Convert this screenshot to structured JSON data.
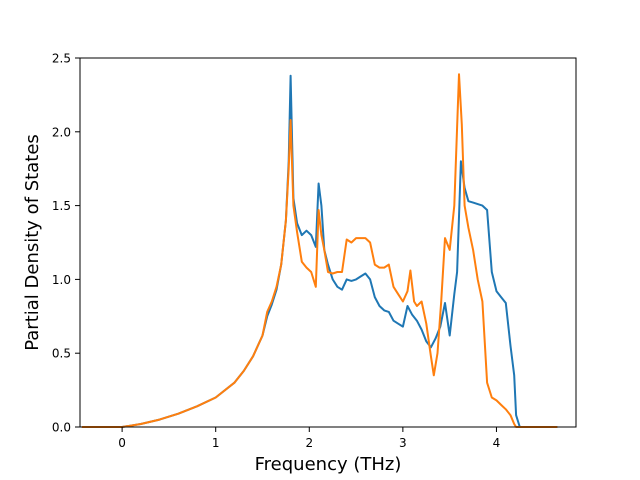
{
  "chart_data": {
    "type": "line",
    "title": "",
    "xlabel": "Frequency (THz)",
    "ylabel": "Partial Density of States",
    "xlim": [
      -0.45,
      4.85
    ],
    "ylim": [
      0,
      2.5
    ],
    "xticks": [
      0,
      1,
      2,
      3,
      4
    ],
    "yticks": [
      0.0,
      0.5,
      1.0,
      1.5,
      2.0,
      2.5
    ],
    "xtick_labels": [
      "0",
      "1",
      "2",
      "3",
      "4"
    ],
    "ytick_labels": [
      "0.0",
      "0.5",
      "1.0",
      "1.5",
      "2.0",
      "2.5"
    ],
    "grid": false,
    "series": [
      {
        "color": "#1f77b4",
        "x": [
          -0.43,
          -0.2,
          0.0,
          0.2,
          0.4,
          0.6,
          0.8,
          1.0,
          1.2,
          1.3,
          1.4,
          1.5,
          1.55,
          1.6,
          1.65,
          1.7,
          1.75,
          1.78,
          1.8,
          1.83,
          1.87,
          1.92,
          1.97,
          2.02,
          2.07,
          2.1,
          2.13,
          2.16,
          2.2,
          2.25,
          2.3,
          2.35,
          2.4,
          2.45,
          2.5,
          2.55,
          2.6,
          2.65,
          2.7,
          2.75,
          2.8,
          2.85,
          2.9,
          2.95,
          3.0,
          3.05,
          3.1,
          3.15,
          3.2,
          3.25,
          3.3,
          3.35,
          3.4,
          3.45,
          3.5,
          3.55,
          3.58,
          3.62,
          3.66,
          3.7,
          3.75,
          3.8,
          3.85,
          3.9,
          3.95,
          4.0,
          4.05,
          4.1,
          4.15,
          4.19,
          4.21,
          4.25,
          4.4,
          4.65
        ],
        "y": [
          0.0,
          0.0,
          0.0,
          0.02,
          0.05,
          0.09,
          0.14,
          0.2,
          0.3,
          0.38,
          0.48,
          0.62,
          0.75,
          0.83,
          0.93,
          1.1,
          1.4,
          1.8,
          2.38,
          1.55,
          1.38,
          1.3,
          1.33,
          1.3,
          1.22,
          1.65,
          1.5,
          1.2,
          1.1,
          1.0,
          0.95,
          0.93,
          1.0,
          0.99,
          1.0,
          1.02,
          1.04,
          1.0,
          0.88,
          0.82,
          0.79,
          0.78,
          0.72,
          0.7,
          0.68,
          0.82,
          0.76,
          0.72,
          0.66,
          0.58,
          0.54,
          0.6,
          0.68,
          0.84,
          0.62,
          0.9,
          1.05,
          1.8,
          1.62,
          1.53,
          1.52,
          1.51,
          1.5,
          1.47,
          1.05,
          0.92,
          0.88,
          0.84,
          0.55,
          0.35,
          0.08,
          0.0,
          0.0,
          0.0
        ]
      },
      {
        "color": "#ff7f0e",
        "x": [
          -0.43,
          -0.2,
          0.0,
          0.2,
          0.4,
          0.6,
          0.8,
          1.0,
          1.2,
          1.3,
          1.4,
          1.5,
          1.55,
          1.6,
          1.65,
          1.7,
          1.75,
          1.78,
          1.8,
          1.83,
          1.87,
          1.92,
          1.97,
          2.02,
          2.07,
          2.1,
          2.13,
          2.16,
          2.2,
          2.25,
          2.3,
          2.35,
          2.4,
          2.45,
          2.5,
          2.55,
          2.6,
          2.65,
          2.7,
          2.75,
          2.8,
          2.85,
          2.9,
          2.95,
          3.0,
          3.05,
          3.08,
          3.12,
          3.15,
          3.2,
          3.25,
          3.3,
          3.33,
          3.37,
          3.41,
          3.45,
          3.5,
          3.55,
          3.6,
          3.63,
          3.66,
          3.7,
          3.75,
          3.8,
          3.85,
          3.9,
          3.95,
          4.0,
          4.05,
          4.1,
          4.15,
          4.19,
          4.21,
          4.25,
          4.4,
          4.65
        ],
        "y": [
          0.0,
          0.0,
          0.0,
          0.02,
          0.05,
          0.09,
          0.14,
          0.2,
          0.3,
          0.38,
          0.48,
          0.62,
          0.78,
          0.85,
          0.95,
          1.1,
          1.4,
          1.75,
          2.08,
          1.5,
          1.32,
          1.12,
          1.08,
          1.05,
          0.95,
          1.47,
          1.3,
          1.2,
          1.05,
          1.04,
          1.05,
          1.05,
          1.27,
          1.25,
          1.28,
          1.28,
          1.28,
          1.25,
          1.1,
          1.08,
          1.08,
          1.1,
          0.95,
          0.9,
          0.85,
          0.92,
          1.06,
          0.85,
          0.82,
          0.85,
          0.7,
          0.48,
          0.35,
          0.5,
          0.85,
          1.28,
          1.2,
          1.5,
          2.39,
          2.05,
          1.5,
          1.35,
          1.2,
          1.0,
          0.85,
          0.3,
          0.2,
          0.18,
          0.15,
          0.12,
          0.08,
          0.02,
          0.0,
          0.0,
          0.0,
          0.0
        ]
      }
    ]
  }
}
